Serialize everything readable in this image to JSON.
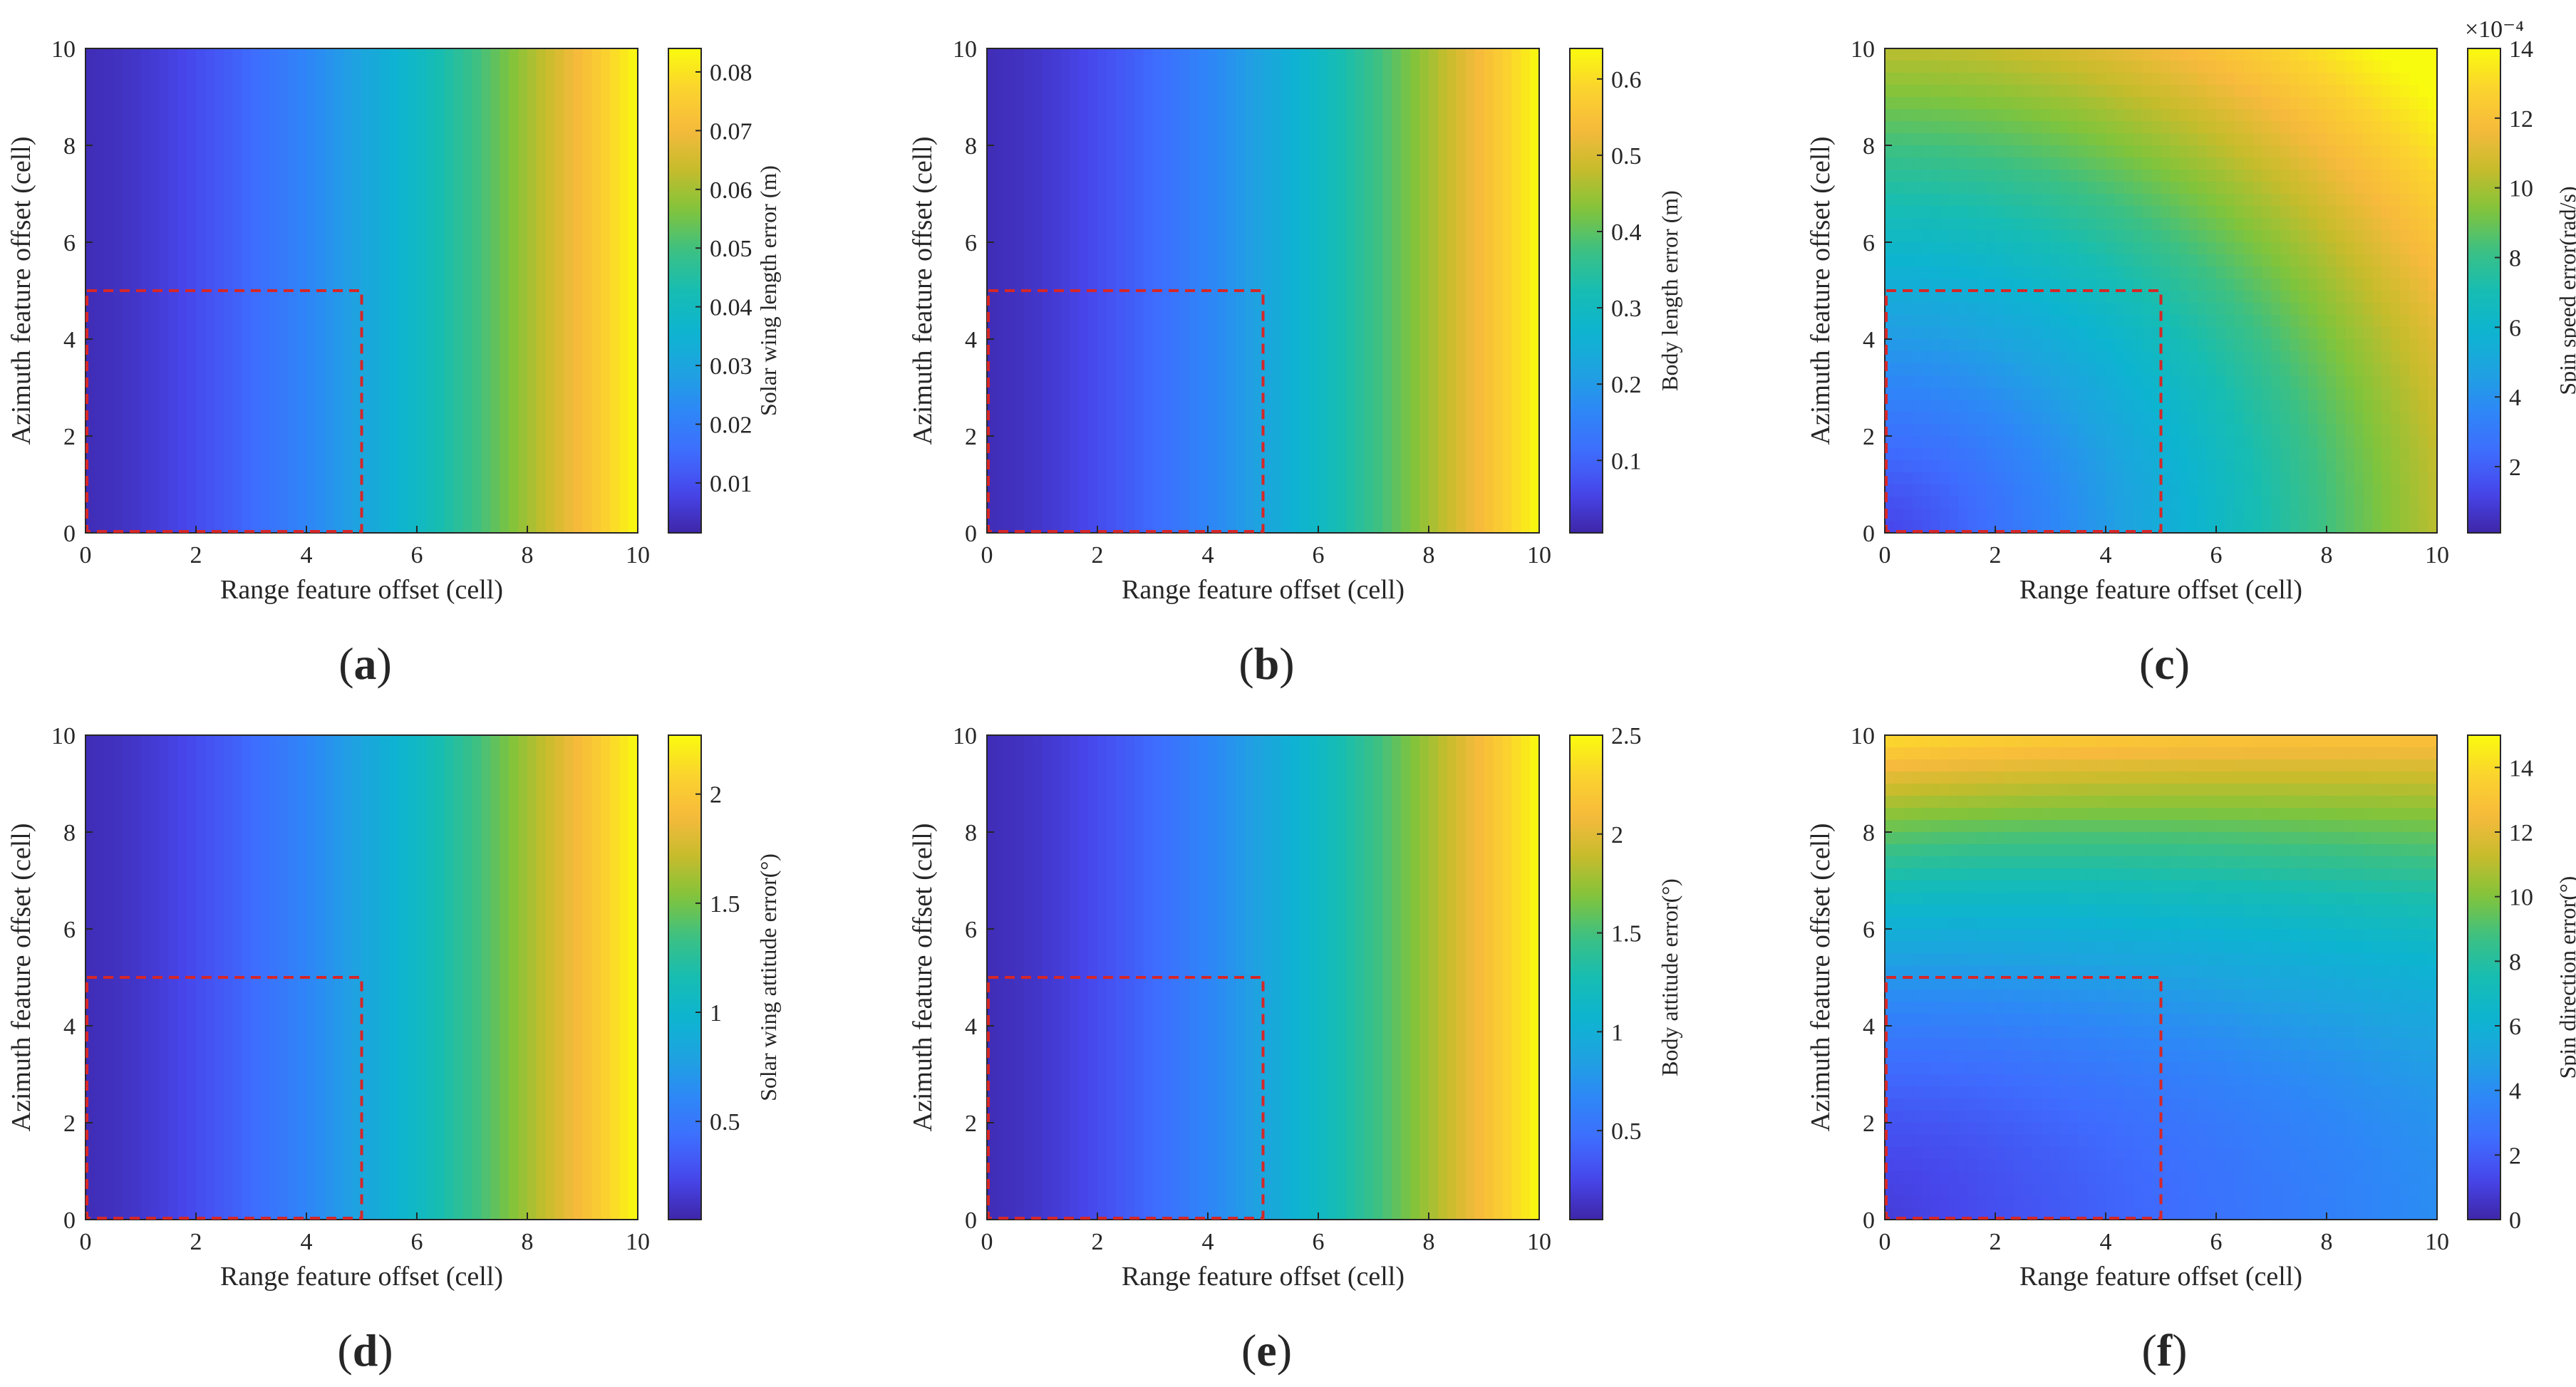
{
  "figure": {
    "colors": {
      "dashed_box": "#d62728",
      "axes": "#262626",
      "colormap": [
        "#3e26a8",
        "#4746eb",
        "#3e6dfe",
        "#2e87f7",
        "#1ea3e0",
        "#0db4d0",
        "#17bdb2",
        "#3cc083",
        "#81c43b",
        "#c6bc2c",
        "#f7ba3c",
        "#fbd32e",
        "#f9fb0e"
      ]
    }
  },
  "chart_data": [
    {
      "id": "a",
      "type": "heatmap",
      "caption": "(a)",
      "caption_letter": "a",
      "xlabel": "Range feature offset (cell)",
      "ylabel": "Azimuth feature offset (cell)",
      "colorbar_label": "Solar wing length error (m)",
      "xlim": [
        0,
        10
      ],
      "ylim": [
        0,
        10
      ],
      "xticks": [
        0,
        2,
        4,
        6,
        8,
        10
      ],
      "yticks": [
        0,
        2,
        4,
        6,
        8,
        10
      ],
      "clim": [
        0.0015,
        0.084
      ],
      "cticks": [
        0.01,
        0.02,
        0.03,
        0.04,
        0.05,
        0.06,
        0.07,
        0.08
      ],
      "ctick_labels": [
        "0.01",
        "0.02",
        "0.03",
        "0.04",
        "0.05",
        "0.06",
        "0.07",
        "0.08"
      ],
      "cexp": "",
      "pattern": "range",
      "region": {
        "x": [
          0,
          5
        ],
        "y": [
          0,
          5
        ]
      }
    },
    {
      "id": "b",
      "type": "heatmap",
      "caption": "(b)",
      "caption_letter": "b",
      "xlabel": "Range feature offset (cell)",
      "ylabel": "Azimuth feature offset (cell)",
      "colorbar_label": "Body length error (m)",
      "xlim": [
        0,
        10
      ],
      "ylim": [
        0,
        10
      ],
      "xticks": [
        0,
        2,
        4,
        6,
        8,
        10
      ],
      "yticks": [
        0,
        2,
        4,
        6,
        8,
        10
      ],
      "clim": [
        0.005,
        0.64
      ],
      "cticks": [
        0.1,
        0.2,
        0.3,
        0.4,
        0.5,
        0.6
      ],
      "ctick_labels": [
        "0.1",
        "0.2",
        "0.3",
        "0.4",
        "0.5",
        "0.6"
      ],
      "cexp": "",
      "pattern": "range",
      "region": {
        "x": [
          0,
          5
        ],
        "y": [
          0,
          5
        ]
      }
    },
    {
      "id": "c",
      "type": "heatmap",
      "caption": "(c)",
      "caption_letter": "c",
      "xlabel": "Range feature offset (cell)",
      "ylabel": "Azimuth feature offset (cell)",
      "colorbar_label": "Spin speed error(rad/s)",
      "xlim": [
        0,
        10
      ],
      "ylim": [
        0,
        10
      ],
      "xticks": [
        0,
        2,
        4,
        6,
        8,
        10
      ],
      "yticks": [
        0,
        2,
        4,
        6,
        8,
        10
      ],
      "clim": [
        0.1,
        14
      ],
      "cticks": [
        2,
        4,
        6,
        8,
        10,
        12,
        14
      ],
      "ctick_labels": [
        "2",
        "4",
        "6",
        "8",
        "10",
        "12",
        "14"
      ],
      "cexp": "×10⁻⁴",
      "pattern": "radial",
      "region": {
        "x": [
          0,
          5
        ],
        "y": [
          0,
          5
        ]
      }
    },
    {
      "id": "d",
      "type": "heatmap",
      "caption": "(d)",
      "caption_letter": "d",
      "xlabel": "Range feature offset (cell)",
      "ylabel": "Azimuth feature offset (cell)",
      "colorbar_label": "Solar wing attitude error(°)",
      "xlim": [
        0,
        10
      ],
      "ylim": [
        0,
        10
      ],
      "xticks": [
        0,
        2,
        4,
        6,
        8,
        10
      ],
      "yticks": [
        0,
        2,
        4,
        6,
        8,
        10
      ],
      "clim": [
        0.05,
        2.27
      ],
      "cticks": [
        0.5,
        1,
        1.5,
        2
      ],
      "ctick_labels": [
        "0.5",
        "1",
        "1.5",
        "2"
      ],
      "cexp": "",
      "pattern": "range",
      "region": {
        "x": [
          0,
          5
        ],
        "y": [
          0,
          5
        ]
      }
    },
    {
      "id": "e",
      "type": "heatmap",
      "caption": "(e)",
      "caption_letter": "e",
      "xlabel": "Range feature offset (cell)",
      "ylabel": "Azimuth feature offset (cell)",
      "colorbar_label": "Body attitude error(°)",
      "xlim": [
        0,
        10
      ],
      "ylim": [
        0,
        10
      ],
      "xticks": [
        0,
        2,
        4,
        6,
        8,
        10
      ],
      "yticks": [
        0,
        2,
        4,
        6,
        8,
        10
      ],
      "clim": [
        0.05,
        2.5
      ],
      "cticks": [
        0.5,
        1,
        1.5,
        2,
        2.5
      ],
      "ctick_labels": [
        "0.5",
        "1",
        "1.5",
        "2",
        "2.5"
      ],
      "cexp": "",
      "pattern": "range",
      "region": {
        "x": [
          0,
          5
        ],
        "y": [
          0,
          5
        ]
      }
    },
    {
      "id": "f",
      "type": "heatmap",
      "caption": "(f)",
      "caption_letter": "f",
      "xlabel": "Range feature offset (cell)",
      "ylabel": "Azimuth feature offset (cell)",
      "colorbar_label": "Spin direction error(°)",
      "xlim": [
        0,
        10
      ],
      "ylim": [
        0,
        10
      ],
      "xticks": [
        0,
        2,
        4,
        6,
        8,
        10
      ],
      "yticks": [
        0,
        2,
        4,
        6,
        8,
        10
      ],
      "clim": [
        0,
        15
      ],
      "cticks": [
        0,
        2,
        4,
        6,
        8,
        10,
        12,
        14
      ],
      "ctick_labels": [
        "0",
        "2",
        "4",
        "6",
        "8",
        "10",
        "12",
        "14"
      ],
      "cexp": "",
      "pattern": "azimuth",
      "region": {
        "x": [
          0,
          5
        ],
        "y": [
          0,
          5
        ]
      }
    }
  ]
}
